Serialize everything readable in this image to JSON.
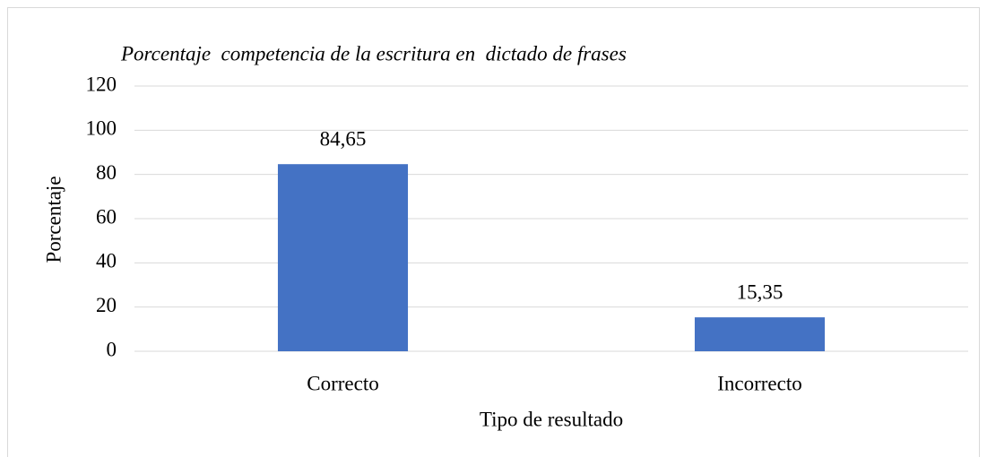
{
  "chart_data": {
    "type": "bar",
    "title": "Porcentaje  competencia de la escritura en  dictado de frases",
    "x_label": "Tipo de resultado",
    "y_label": "Porcentaje",
    "categories": [
      "Correcto",
      "Incorrecto"
    ],
    "values": [
      84.65,
      15.35
    ],
    "value_labels": [
      "84,65",
      "15,35"
    ],
    "color": "#4472c4",
    "ylim": [
      0,
      120
    ],
    "yticks": [
      0,
      20,
      40,
      60,
      80,
      100,
      120
    ],
    "grid": true
  }
}
